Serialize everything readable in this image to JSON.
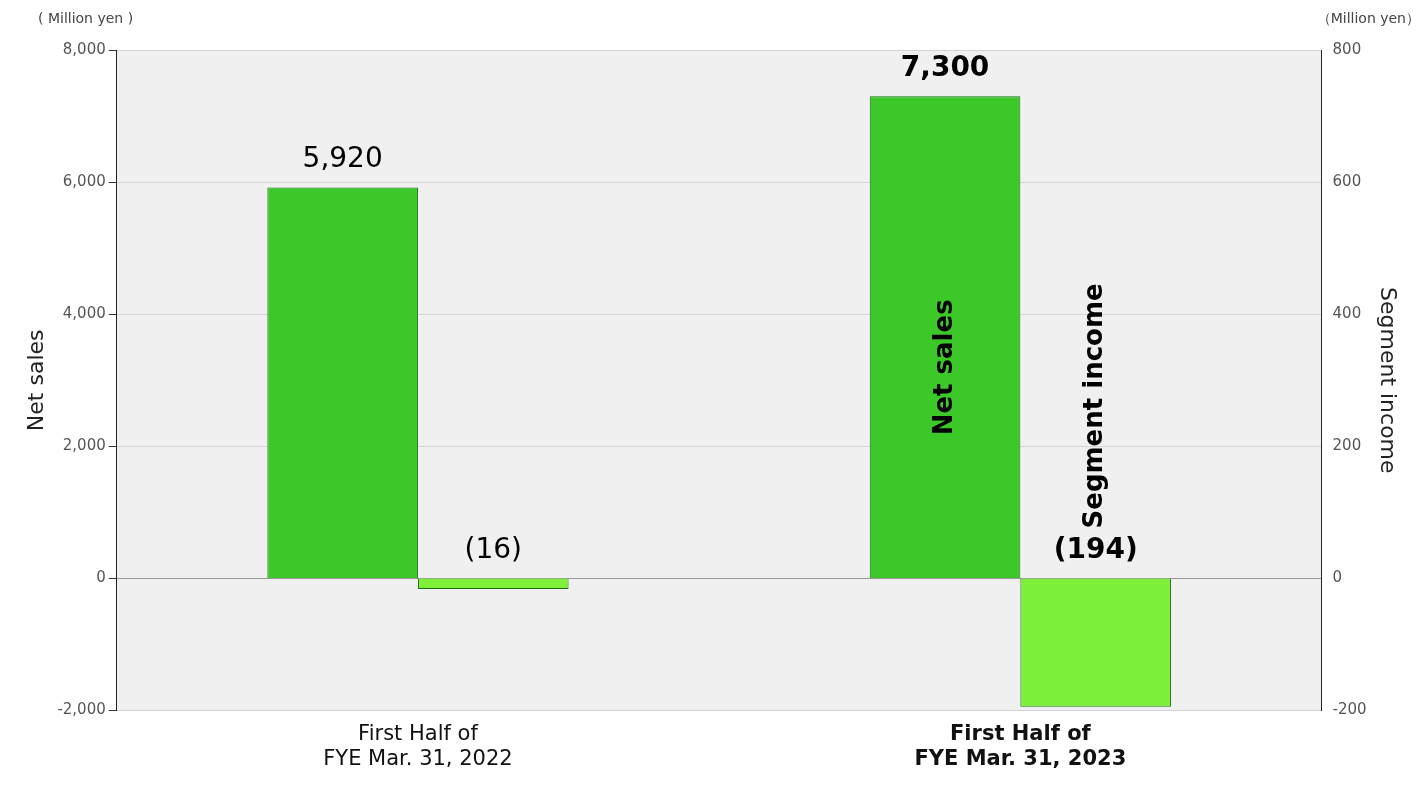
{
  "chart_data": {
    "type": "bar",
    "categories": [
      "First Half of\nFYE Mar. 31, 2022",
      "First Half of\nFYE Mar. 31, 2023"
    ],
    "series": [
      {
        "name": "Net sales",
        "color": "#3cc828",
        "values": [
          5920,
          7300
        ],
        "value_labels": [
          "5,920",
          "7,300"
        ]
      },
      {
        "name": "Segment income",
        "color": "#7ef03a",
        "values": [
          -16,
          -194
        ],
        "axis": "y2",
        "value_labels": [
          "(16)",
          "(194)"
        ]
      }
    ],
    "ylabel": "Net sales",
    "y2label": "Segment income",
    "ylim": [
      -2000,
      8000
    ],
    "yticks": [
      {
        "value": -2000,
        "label": "-2,000"
      },
      0,
      {
        "value": 2000,
        "label": "2,000"
      },
      {
        "value": 4000,
        "label": "4,000"
      },
      {
        "value": 6000,
        "label": "6,000"
      },
      {
        "value": 8000,
        "label": "8,000"
      }
    ],
    "y2lim": [
      -200,
      800
    ],
    "y2ticks": [
      -200,
      0,
      200,
      400,
      600,
      800
    ],
    "grid": "y",
    "legend": false,
    "annotations": [
      "( Million yen )",
      "（Million yen）"
    ]
  }
}
